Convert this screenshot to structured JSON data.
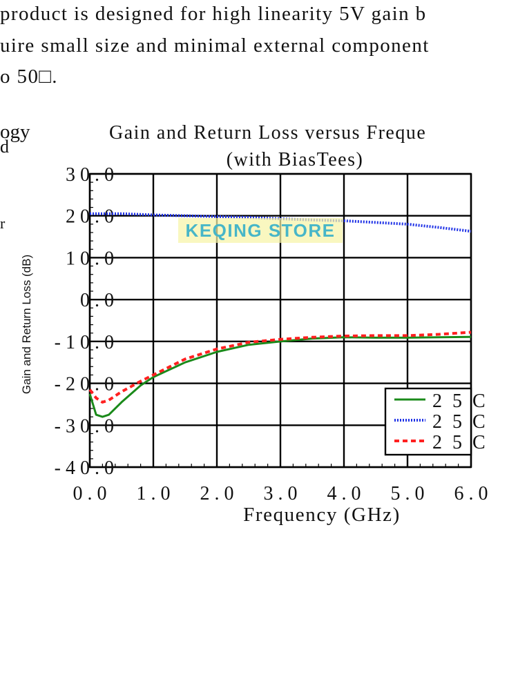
{
  "text": {
    "line1": "product is designed for high linearity 5V gain b",
    "line2": "uire small size and minimal external component",
    "line3": "o 50□.",
    "side_top": "ogy",
    "side_mid": "d",
    "side_low": "r"
  },
  "watermark": "KEQING STORE",
  "chart_data": {
    "type": "line",
    "title": "Gain and Return Loss versus Freque",
    "subtitle": "(with BiasTees)",
    "xlabel": "Frequency (GHz)",
    "ylabel": "Gain and Return Loss (dB)",
    "xlim": [
      0,
      6
    ],
    "ylim": [
      -40,
      30
    ],
    "x_ticks": [
      0,
      1,
      2,
      3,
      4,
      5,
      6
    ],
    "x_tick_labels": [
      "0 . 0",
      "1 . 0",
      "2 . 0",
      "3 . 0",
      "4 . 0",
      "5 . 0",
      "6 . 0"
    ],
    "y_ticks": [
      30,
      20,
      10,
      0,
      -10,
      -20,
      -30,
      -40
    ],
    "y_tick_labels": [
      "3 0 . 0",
      "2 0 . 0",
      "1 0 . 0",
      "0 . 0",
      "- 1 0 . 0",
      "- 2 0 . 0",
      "- 3 0 . 0",
      "- 4 0 . 0"
    ],
    "grid": true,
    "legend_position": "bottom-right",
    "series": [
      {
        "name": "2 5 C",
        "color": "#1a8a1a",
        "style": "solid",
        "x": [
          0.0,
          0.05,
          0.1,
          0.2,
          0.3,
          0.5,
          0.8,
          1.0,
          1.5,
          2.0,
          2.5,
          3.0,
          3.5,
          4.0,
          4.5,
          5.0,
          5.5,
          6.0
        ],
        "values": [
          -22.5,
          -25,
          -27.5,
          -28,
          -27.5,
          -24.5,
          -20.5,
          -18.5,
          -15,
          -12.5,
          -10.8,
          -10,
          -9.3,
          -9,
          -9.1,
          -9.1,
          -9,
          -8.9
        ]
      },
      {
        "name": "2 5 C",
        "color": "#1f32e6",
        "style": "dotted",
        "x": [
          0.0,
          0.5,
          1.0,
          1.5,
          2.0,
          2.5,
          3.0,
          3.5,
          4.0,
          4.5,
          5.0,
          5.5,
          6.0
        ],
        "values": [
          20.5,
          20.5,
          20.2,
          20,
          19.8,
          19.6,
          19.3,
          19,
          18.8,
          18.4,
          18,
          17.2,
          16.3
        ]
      },
      {
        "name": "2 5 C",
        "color": "#ff2020",
        "style": "dashed",
        "x": [
          0.0,
          0.1,
          0.2,
          0.3,
          0.5,
          0.8,
          1.0,
          1.5,
          2.0,
          2.5,
          3.0,
          3.5,
          4.0,
          4.5,
          5.0,
          5.5,
          6.0
        ],
        "values": [
          -21.5,
          -23.5,
          -24.5,
          -24,
          -22,
          -19.5,
          -18,
          -14.2,
          -11.8,
          -10.2,
          -9.5,
          -9,
          -8.7,
          -8.6,
          -8.6,
          -8.3,
          -7.8
        ]
      }
    ]
  }
}
